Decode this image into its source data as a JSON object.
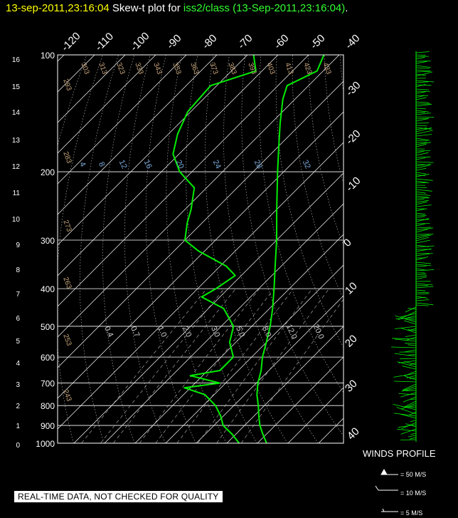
{
  "title": {
    "timestamp": "13-sep-2011,23:16:04",
    "plot_label": "Skew-t plot for",
    "source": "iss2/class",
    "source_time": "(13-Sep-2011,23:16:04)",
    "period": "."
  },
  "disclaimer": "REAL-TIME DATA, NOT CHECKED FOR QUALITY",
  "winds_profile": {
    "label": "WINDS PROFILE",
    "legend": [
      "= 50 M/S",
      "= 10 M/S",
      "= 5 M/S"
    ]
  },
  "colors": {
    "background": "#000000",
    "sounding": "#00ee00",
    "grid": "#ffffff",
    "dry_adiabat_labels": "#c8a67a",
    "mixing_ratio_labels": "#7aa8d8",
    "title_timestamp": "#ffff00",
    "title_source": "#33ff33"
  },
  "chart_data": {
    "type": "skew-t",
    "pressure_axis": {
      "label_values": [
        100,
        200,
        300,
        400,
        500,
        600,
        700,
        800,
        900,
        1000
      ],
      "scale": "log",
      "range_hpa": [
        100,
        1000
      ]
    },
    "height_axis_km": [
      16,
      15,
      14,
      13,
      12,
      11,
      10,
      9,
      8,
      7,
      6,
      5,
      4,
      3,
      2,
      1,
      0
    ],
    "isotherm_labels_top": [
      "-120",
      "-110",
      "-100",
      "-90",
      "-80",
      "-70",
      "-60",
      "-50",
      "-40"
    ],
    "isotherm_labels_right": [
      "-30",
      "-20",
      "-10",
      "0",
      "10",
      "20",
      "30",
      "40"
    ],
    "dry_adiabat_labels": [
      "293",
      "303",
      "313",
      "323",
      "333",
      "343",
      "353",
      "363",
      "373",
      "383",
      "393",
      "403",
      "413",
      "423",
      "433",
      "283",
      "273",
      "263",
      "253",
      "243"
    ],
    "mixing_ratio_labels_upper": [
      "4",
      "8",
      "12",
      "16",
      "20",
      "24",
      "28",
      "32"
    ],
    "mixing_ratio_labels_lower": [
      "0.4",
      "0.7",
      "1.0",
      "2.0",
      "3.0",
      "5.0",
      "8.0",
      "12.0",
      "20.0"
    ],
    "temperature": [
      {
        "p": 1000,
        "t": 33
      },
      {
        "p": 950,
        "t": 29
      },
      {
        "p": 900,
        "t": 25
      },
      {
        "p": 850,
        "t": 21.5
      },
      {
        "p": 800,
        "t": 18
      },
      {
        "p": 750,
        "t": 14
      },
      {
        "p": 700,
        "t": 10.5
      },
      {
        "p": 650,
        "t": 7.5
      },
      {
        "p": 600,
        "t": 3.5
      },
      {
        "p": 550,
        "t": 0
      },
      {
        "p": 500,
        "t": -4
      },
      {
        "p": 450,
        "t": -9
      },
      {
        "p": 400,
        "t": -15
      },
      {
        "p": 350,
        "t": -22
      },
      {
        "p": 300,
        "t": -30
      },
      {
        "p": 250,
        "t": -40
      },
      {
        "p": 200,
        "t": -52
      },
      {
        "p": 175,
        "t": -59
      },
      {
        "p": 150,
        "t": -67
      },
      {
        "p": 130,
        "t": -74
      },
      {
        "p": 120,
        "t": -77
      },
      {
        "p": 110,
        "t": -72
      },
      {
        "p": 100,
        "t": -75
      }
    ],
    "dewpoint": [
      {
        "p": 1000,
        "t": 24
      },
      {
        "p": 950,
        "t": 19
      },
      {
        "p": 900,
        "t": 13
      },
      {
        "p": 850,
        "t": 9
      },
      {
        "p": 800,
        "t": 4
      },
      {
        "p": 750,
        "t": -3
      },
      {
        "p": 720,
        "t": -12
      },
      {
        "p": 700,
        "t": -2
      },
      {
        "p": 670,
        "t": -14
      },
      {
        "p": 650,
        "t": -6
      },
      {
        "p": 600,
        "t": -6
      },
      {
        "p": 550,
        "t": -12
      },
      {
        "p": 500,
        "t": -16
      },
      {
        "p": 450,
        "t": -25
      },
      {
        "p": 420,
        "t": -36
      },
      {
        "p": 400,
        "t": -34
      },
      {
        "p": 370,
        "t": -32
      },
      {
        "p": 350,
        "t": -38
      },
      {
        "p": 320,
        "t": -52
      },
      {
        "p": 300,
        "t": -60
      },
      {
        "p": 270,
        "t": -65
      },
      {
        "p": 250,
        "t": -68
      },
      {
        "p": 220,
        "t": -74
      },
      {
        "p": 200,
        "t": -84
      },
      {
        "p": 180,
        "t": -92
      },
      {
        "p": 160,
        "t": -97
      },
      {
        "p": 140,
        "t": -101
      },
      {
        "p": 120,
        "t": -102
      },
      {
        "p": 110,
        "t": -92
      },
      {
        "p": 100,
        "t": -98
      }
    ]
  }
}
